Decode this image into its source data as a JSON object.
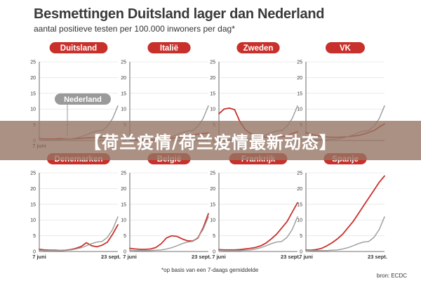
{
  "header": {
    "title": "Besmettingen Duitsland lager dan Nederland",
    "subtitle": "aantal positieve testen per 100.000 inwoners per dag*"
  },
  "footnote": "*op basis van een 7-daags gemiddelde",
  "source": "bron: ECDC",
  "banner": {
    "text": "【荷兰疫情/荷兰疫情最新动态】"
  },
  "colors": {
    "country": "#c8302b",
    "nederland": "#9a9a9a",
    "axis": "#444444",
    "grid": "#dddddd"
  },
  "chart_data": [
    {
      "type": "line",
      "title": "Duitsland",
      "ylim": [
        0,
        25
      ],
      "yticks": [
        0,
        5,
        10,
        15,
        20,
        25
      ],
      "x_start_label": "7 juni",
      "x_end_label": "",
      "annotation": "Nederland",
      "series": [
        {
          "name": "Duitsland",
          "values": [
            0.6,
            0.5,
            0.5,
            0.5,
            0.6,
            0.5,
            0.5,
            0.6,
            0.7,
            0.8,
            0.9,
            0.9,
            1.0,
            1.2,
            1.3,
            1.5
          ]
        },
        {
          "name": "Nederland",
          "values": [
            0.4,
            0.3,
            0.3,
            0.3,
            0.3,
            0.4,
            0.5,
            0.8,
            1.2,
            1.8,
            2.5,
            3.0,
            3.2,
            4.5,
            7.0,
            11.0
          ]
        }
      ]
    },
    {
      "type": "line",
      "title": "Italië",
      "ylim": [
        0,
        25
      ],
      "yticks": [
        0,
        5,
        10,
        15,
        20,
        25
      ],
      "x_start_label": "",
      "x_end_label": "",
      "series": [
        {
          "name": "Italië",
          "values": [
            0.4,
            0.3,
            0.3,
            0.3,
            0.3,
            0.3,
            0.4,
            0.5,
            0.7,
            0.9,
            1.1,
            1.4,
            1.7,
            2.0,
            2.2,
            2.4
          ]
        },
        {
          "name": "Nederland",
          "values": [
            0.4,
            0.3,
            0.3,
            0.3,
            0.3,
            0.4,
            0.5,
            0.8,
            1.2,
            1.8,
            2.5,
            3.0,
            3.2,
            4.5,
            7.0,
            11.0
          ]
        }
      ]
    },
    {
      "type": "line",
      "title": "Zweden",
      "ylim": [
        0,
        25
      ],
      "yticks": [
        0,
        5,
        10,
        15,
        20,
        25
      ],
      "x_start_label": "",
      "x_end_label": "",
      "series": [
        {
          "name": "Zweden",
          "values": [
            8.5,
            10.0,
            10.3,
            9.8,
            6.0,
            3.5,
            2.2,
            1.5,
            1.2,
            1.0,
            1.0,
            1.1,
            1.2,
            1.5,
            2.2,
            2.8
          ]
        },
        {
          "name": "Nederland",
          "values": [
            0.4,
            0.3,
            0.3,
            0.3,
            0.3,
            0.4,
            0.5,
            0.8,
            1.2,
            1.8,
            2.5,
            3.0,
            3.2,
            4.5,
            7.0,
            11.0
          ]
        }
      ]
    },
    {
      "type": "line",
      "title": "VK",
      "ylim": [
        0,
        25
      ],
      "yticks": [
        0,
        5,
        10,
        15,
        20,
        25
      ],
      "x_start_label": "",
      "x_end_label": "",
      "series": [
        {
          "name": "VK",
          "values": [
            2.5,
            2.0,
            1.6,
            1.3,
            1.1,
            1.0,
            1.0,
            1.1,
            1.2,
            1.4,
            1.6,
            2.0,
            2.6,
            3.2,
            4.3,
            5.3
          ]
        },
        {
          "name": "Nederland",
          "values": [
            0.4,
            0.3,
            0.3,
            0.3,
            0.3,
            0.4,
            0.5,
            0.8,
            1.2,
            1.8,
            2.5,
            3.0,
            3.2,
            4.5,
            7.0,
            11.0
          ]
        }
      ]
    },
    {
      "type": "line",
      "title": "Denemarken",
      "ylim": [
        0,
        25
      ],
      "yticks": [
        0,
        5,
        10,
        15,
        20,
        25
      ],
      "x_start_label": "7 juni",
      "x_end_label": "23 sept.",
      "series": [
        {
          "name": "Denemarken",
          "values": [
            0.7,
            0.5,
            0.4,
            0.4,
            0.3,
            0.4,
            0.6,
            1.0,
            1.6,
            2.8,
            1.8,
            1.5,
            2.0,
            3.0,
            5.5,
            8.5
          ]
        },
        {
          "name": "Nederland",
          "values": [
            0.4,
            0.3,
            0.3,
            0.3,
            0.3,
            0.4,
            0.5,
            0.8,
            1.2,
            1.8,
            2.5,
            3.0,
            3.2,
            4.5,
            7.0,
            11.0
          ]
        }
      ]
    },
    {
      "type": "line",
      "title": "België",
      "ylim": [
        0,
        25
      ],
      "yticks": [
        0,
        5,
        10,
        15,
        20,
        25
      ],
      "x_start_label": "7 juni",
      "x_end_label": "23 sept.",
      "series": [
        {
          "name": "België",
          "values": [
            1.0,
            0.8,
            0.7,
            0.7,
            0.8,
            1.3,
            2.5,
            4.3,
            5.0,
            4.8,
            4.0,
            3.4,
            3.3,
            4.3,
            7.5,
            12.0
          ]
        },
        {
          "name": "Nederland",
          "values": [
            0.4,
            0.3,
            0.3,
            0.3,
            0.3,
            0.4,
            0.5,
            0.8,
            1.2,
            1.8,
            2.5,
            3.0,
            3.2,
            4.5,
            7.0,
            11.0
          ]
        }
      ]
    },
    {
      "type": "line",
      "title": "Frankrijk",
      "ylim": [
        0,
        25
      ],
      "yticks": [
        0,
        5,
        10,
        15,
        20,
        25
      ],
      "x_start_label": "7 juni",
      "x_end_label": "23 sept.",
      "series": [
        {
          "name": "Frankrijk",
          "values": [
            0.6,
            0.5,
            0.5,
            0.5,
            0.6,
            0.8,
            1.0,
            1.3,
            1.8,
            2.7,
            4.0,
            5.5,
            7.5,
            9.5,
            12.5,
            15.5
          ]
        },
        {
          "name": "Nederland",
          "values": [
            0.4,
            0.3,
            0.3,
            0.3,
            0.3,
            0.4,
            0.5,
            0.8,
            1.2,
            1.8,
            2.5,
            3.0,
            3.2,
            4.5,
            7.0,
            11.0
          ]
        }
      ]
    },
    {
      "type": "line",
      "title": "Spanje",
      "ylim": [
        0,
        25
      ],
      "yticks": [
        0,
        5,
        10,
        15,
        20,
        25
      ],
      "x_start_label": "7 juni",
      "x_end_label": "23 sept.",
      "series": [
        {
          "name": "Spanje",
          "values": [
            0.5,
            0.4,
            0.6,
            1.0,
            1.8,
            2.8,
            4.0,
            5.5,
            7.5,
            9.5,
            12.0,
            14.5,
            17.0,
            19.5,
            22.0,
            24.0
          ]
        },
        {
          "name": "Nederland",
          "values": [
            0.4,
            0.3,
            0.3,
            0.3,
            0.3,
            0.4,
            0.5,
            0.8,
            1.2,
            1.8,
            2.5,
            3.0,
            3.2,
            4.5,
            7.0,
            11.0
          ]
        }
      ]
    }
  ]
}
